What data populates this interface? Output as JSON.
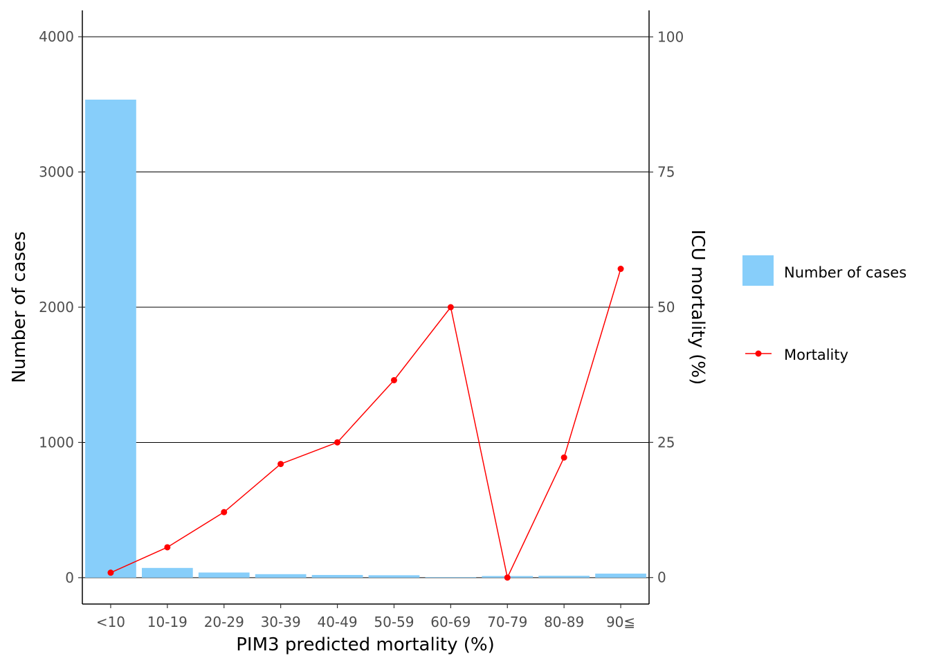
{
  "chart_data": {
    "type": "bar",
    "categories": [
      "<10",
      "10-19",
      "20-29",
      "30-39",
      "40-49",
      "50-59",
      "60-69",
      "70-79",
      "80-89",
      "90≦"
    ],
    "series": [
      {
        "name": "Number of cases",
        "type": "bar",
        "axis": "left",
        "values": [
          3535,
          72,
          38,
          26,
          20,
          18,
          4,
          12,
          14,
          30
        ],
        "color": "#87CEFA"
      },
      {
        "name": "Mortality",
        "type": "line",
        "axis": "right",
        "values": [
          0.9,
          5.6,
          12.1,
          21.0,
          25.0,
          36.5,
          50.0,
          0.0,
          22.2,
          57.1
        ],
        "color": "#FF0000"
      }
    ],
    "xlabel": "PIM3 predicted mortality (%)",
    "ylabel": "Number of cases",
    "y2label": "ICU mortality (%)",
    "ylim": [
      -195,
      4195
    ],
    "y2lim": [
      -4.9,
      104.9
    ],
    "yticks": [
      "0",
      "1000",
      "2000",
      "3000",
      "4000"
    ],
    "y2ticks": [
      "0",
      "25",
      "50",
      "75",
      "100"
    ],
    "grid": true,
    "legend": "right"
  }
}
